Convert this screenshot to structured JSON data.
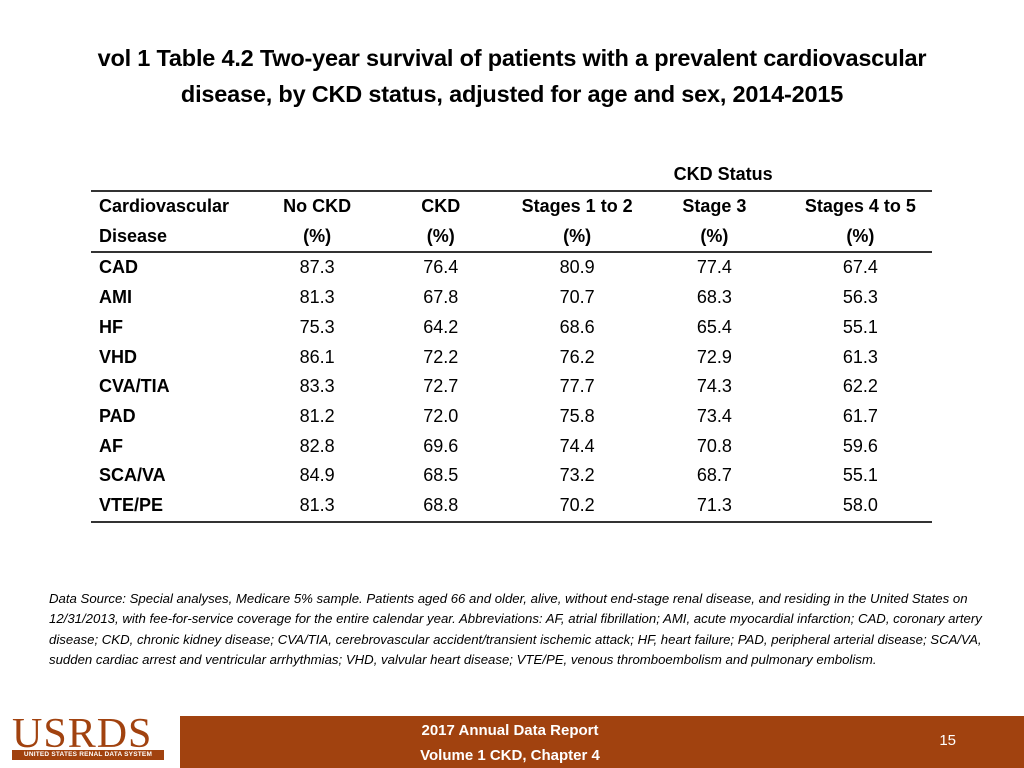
{
  "title": {
    "line1": "vol 1 Table 4.2 Two-year survival of patients with a prevalent cardiovascular",
    "line2": "disease, by CKD status, adjusted for age and sex, 2014-2015"
  },
  "table": {
    "group_header": "CKD Status",
    "headers_line1": [
      "Cardiovascular",
      "No CKD",
      "CKD",
      "Stages 1 to 2",
      "Stage 3",
      "Stages 4 to 5"
    ],
    "headers_line2": [
      "Disease",
      "(%)",
      "(%)",
      "(%)",
      "(%)",
      "(%)"
    ],
    "rows": [
      {
        "name": "CAD",
        "values": [
          "87.3",
          "76.4",
          "80.9",
          "77.4",
          "67.4"
        ]
      },
      {
        "name": "AMI",
        "values": [
          "81.3",
          "67.8",
          "70.7",
          "68.3",
          "56.3"
        ]
      },
      {
        "name": "HF",
        "values": [
          "75.3",
          "64.2",
          "68.6",
          "65.4",
          "55.1"
        ]
      },
      {
        "name": "VHD",
        "values": [
          "86.1",
          "72.2",
          "76.2",
          "72.9",
          "61.3"
        ]
      },
      {
        "name": "CVA/TIA",
        "values": [
          "83.3",
          "72.7",
          "77.7",
          "74.3",
          "62.2"
        ]
      },
      {
        "name": "PAD",
        "values": [
          "81.2",
          "72.0",
          "75.8",
          "73.4",
          "61.7"
        ]
      },
      {
        "name": "AF",
        "values": [
          "82.8",
          "69.6",
          "74.4",
          "70.8",
          "59.6"
        ]
      },
      {
        "name": "SCA/VA",
        "values": [
          "84.9",
          "68.5",
          "73.2",
          "68.7",
          "55.1"
        ]
      },
      {
        "name": "VTE/PE",
        "values": [
          "81.3",
          "68.8",
          "70.2",
          "71.3",
          "58.0"
        ]
      }
    ]
  },
  "footnote": "Data Source: Special analyses, Medicare 5% sample. Patients aged 66 and older, alive, without end-stage renal disease, and residing in the United States on 12/31/2013, with fee-for-service coverage for the entire calendar year. Abbreviations: AF, atrial fibrillation; AMI, acute myocardial infarction; CAD, coronary artery disease; CKD, chronic kidney disease; CVA/TIA, cerebrovascular accident/transient ischemic attack; HF, heart failure; PAD, peripheral arterial disease; SCA/VA, sudden cardiac arrest and ventricular arrhythmias; VHD, valvular heart disease; VTE/PE, venous thromboembolism and pulmonary embolism.",
  "footer": {
    "logo_text": "USRDS",
    "logo_subtext": "UNITED STATES RENAL DATA SYSTEM",
    "report_line1": "2017 Annual Data Report",
    "report_line2": "Volume 1 CKD, Chapter 4",
    "page_number": "15"
  },
  "colors": {
    "footer_bar": "#a1420f",
    "rule": "#333333"
  }
}
